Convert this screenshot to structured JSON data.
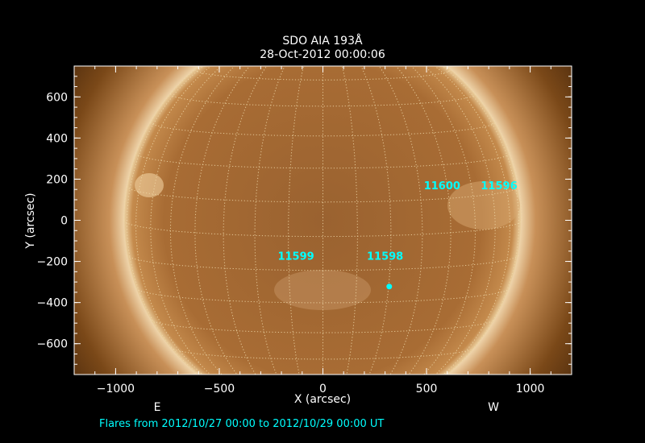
{
  "chart_data": {
    "type": "image",
    "title": "SDO AIA 193Å",
    "subtitle": "28-Oct-2012 00:00:06",
    "xlabel": "X (arcsec)",
    "ylabel": "Y (arcsec)",
    "xlim": [
      -1200,
      1200
    ],
    "ylim": [
      -750,
      750
    ],
    "xticks": [
      -1000,
      -500,
      0,
      500,
      1000
    ],
    "yticks": [
      -600,
      -400,
      -200,
      0,
      200,
      400,
      600
    ],
    "xtick_labels": [
      "−1000",
      "−500",
      "0",
      "500",
      "1000"
    ],
    "ytick_labels": [
      "−600",
      "−400",
      "−200",
      "0",
      "200",
      "400",
      "600"
    ],
    "solar_radius_arcsec": 960,
    "grid": "heliographic, 10° spacing, dotted",
    "colormap": "SDO AIA 193 (brown/gold)",
    "direction_labels": {
      "east": "E",
      "west": "W"
    },
    "active_regions": [
      {
        "label": "11600",
        "x": 575,
        "y": 170
      },
      {
        "label": "11596",
        "x": 850,
        "y": 170
      },
      {
        "label": "11599",
        "x": -130,
        "y": -172
      },
      {
        "label": "11598",
        "x": 300,
        "y": -172
      }
    ],
    "flares": [
      {
        "x": 320,
        "y": -322
      }
    ],
    "footer": "Flares from 2012/10/27 00:00 to 2012/10/29 00:00 UT",
    "colors": {
      "annotation": "#00ffff",
      "axes": "#ffffff",
      "grid": "#f0d8a8"
    }
  }
}
